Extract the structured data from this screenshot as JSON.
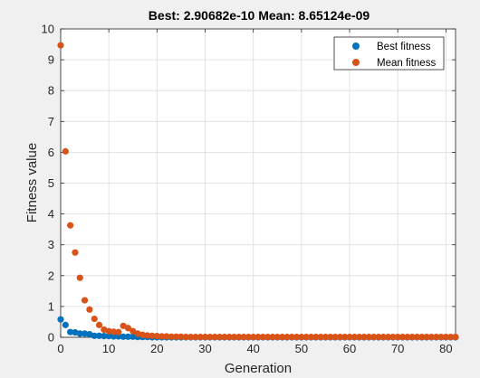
{
  "chart_data": {
    "type": "scatter",
    "title": "Best: 2.90682e-10 Mean: 8.65124e-09",
    "xlabel": "Generation",
    "ylabel": "Fitness value",
    "xlim": [
      0,
      82
    ],
    "ylim": [
      0,
      10
    ],
    "xticks": [
      0,
      10,
      20,
      30,
      40,
      50,
      60,
      70,
      80
    ],
    "yticks": [
      0,
      1,
      2,
      3,
      4,
      5,
      6,
      7,
      8,
      9,
      10
    ],
    "grid": true,
    "legend_position": "top-right",
    "series": [
      {
        "name": "Best fitness",
        "color": "#0072bd",
        "x": [
          0,
          1,
          2,
          3,
          4,
          5,
          6,
          7,
          8,
          9,
          10,
          11,
          12,
          13,
          14,
          15,
          16,
          17,
          18,
          19,
          20,
          21,
          22,
          23,
          24,
          25,
          26,
          27,
          28,
          29,
          30,
          31,
          32,
          33,
          34,
          35,
          36,
          37,
          38,
          39,
          40,
          41,
          42,
          43,
          44,
          45,
          46,
          47,
          48,
          49,
          50,
          51,
          52,
          53,
          54,
          55,
          56,
          57,
          58,
          59,
          60,
          61,
          62,
          63,
          64,
          65,
          66,
          67,
          68,
          69,
          70,
          71,
          72,
          73,
          74,
          75,
          76,
          77,
          78,
          79,
          80,
          81,
          82
        ],
        "y": [
          0.58,
          0.4,
          0.17,
          0.16,
          0.12,
          0.12,
          0.1,
          0.05,
          0.05,
          0.04,
          0.04,
          0.03,
          0.03,
          0.02,
          0.02,
          0.02,
          0.01,
          0.01,
          0.01,
          0,
          0,
          0,
          0,
          0,
          0,
          0,
          0,
          0,
          0,
          0,
          0,
          0,
          0,
          0,
          0,
          0,
          0,
          0,
          0,
          0,
          0,
          0,
          0,
          0,
          0,
          0,
          0,
          0,
          0,
          0,
          0,
          0,
          0,
          0,
          0,
          0,
          0,
          0,
          0,
          0,
          0,
          0,
          0,
          0,
          0,
          0,
          0,
          0,
          0,
          0,
          0,
          0,
          0,
          0,
          0,
          0,
          0,
          0,
          0,
          0,
          0,
          0,
          0
        ]
      },
      {
        "name": "Mean fitness",
        "color": "#d95319",
        "x": [
          0,
          1,
          2,
          3,
          4,
          5,
          6,
          7,
          8,
          9,
          10,
          11,
          12,
          13,
          14,
          15,
          16,
          17,
          18,
          19,
          20,
          21,
          22,
          23,
          24,
          25,
          26,
          27,
          28,
          29,
          30,
          31,
          32,
          33,
          34,
          35,
          36,
          37,
          38,
          39,
          40,
          41,
          42,
          43,
          44,
          45,
          46,
          47,
          48,
          49,
          50,
          51,
          52,
          53,
          54,
          55,
          56,
          57,
          58,
          59,
          60,
          61,
          62,
          63,
          64,
          65,
          66,
          67,
          68,
          69,
          70,
          71,
          72,
          73,
          74,
          75,
          76,
          77,
          78,
          79,
          80,
          81,
          82
        ],
        "y": [
          9.47,
          6.03,
          3.63,
          2.75,
          1.93,
          1.2,
          0.9,
          0.6,
          0.4,
          0.25,
          0.2,
          0.18,
          0.17,
          0.37,
          0.3,
          0.2,
          0.12,
          0.08,
          0.06,
          0.05,
          0.04,
          0.03,
          0.03,
          0.02,
          0.02,
          0.02,
          0.01,
          0.01,
          0.01,
          0.01,
          0.01,
          0.01,
          0.01,
          0.01,
          0.01,
          0.01,
          0.01,
          0.01,
          0.01,
          0.01,
          0.01,
          0.01,
          0.01,
          0.01,
          0.01,
          0.01,
          0.01,
          0.01,
          0.01,
          0.01,
          0.01,
          0.01,
          0.01,
          0.01,
          0.01,
          0.01,
          0.01,
          0.01,
          0.01,
          0.01,
          0.01,
          0.01,
          0.01,
          0.01,
          0.01,
          0.01,
          0.01,
          0.01,
          0.01,
          0.01,
          0.01,
          0.01,
          0.01,
          0.01,
          0.01,
          0.01,
          0.01,
          0.01,
          0.01,
          0.01,
          0.01,
          0.01,
          0.01
        ]
      }
    ]
  }
}
